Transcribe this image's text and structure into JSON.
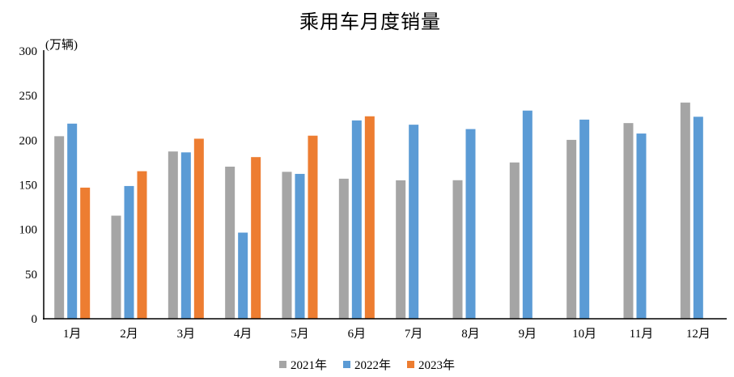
{
  "chart_data": {
    "type": "bar",
    "title": "乘用车月度销量",
    "unit": "(万辆)",
    "categories": [
      "1月",
      "2月",
      "3月",
      "4月",
      "5月",
      "6月",
      "7月",
      "8月",
      "9月",
      "10月",
      "11月",
      "12月"
    ],
    "series": [
      {
        "name": "2021年",
        "color": "#A5A5A5",
        "values": [
          204.5,
          115.5,
          187.4,
          170.4,
          164.6,
          156.9,
          155.1,
          155.2,
          175.1,
          200.4,
          219.2,
          242.2
        ]
      },
      {
        "name": "2022年",
        "color": "#5B9BD5",
        "values": [
          218.6,
          148.7,
          186.4,
          96.5,
          162.3,
          222.2,
          217.4,
          212.5,
          233.2,
          223.1,
          207.5,
          226.3
        ]
      },
      {
        "name": "2023年",
        "color": "#ED7D31",
        "values": [
          146.9,
          165.3,
          201.7,
          181.1,
          205.1,
          226.8,
          null,
          null,
          null,
          null,
          null,
          null
        ]
      }
    ],
    "y_axis": {
      "min": 0,
      "max": 300,
      "step": 50,
      "ticks": [
        0,
        50,
        100,
        150,
        200,
        250,
        300
      ]
    },
    "grid": false,
    "legend_position": "bottom",
    "axis_color": "#000000",
    "text_color": "#000000",
    "background": "#FFFFFF"
  }
}
